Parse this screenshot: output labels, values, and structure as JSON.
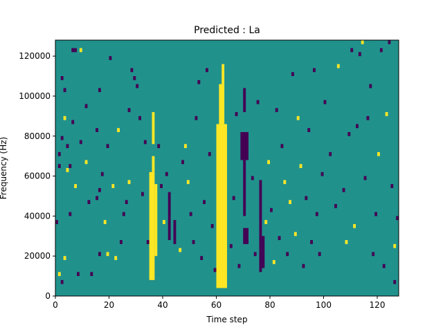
{
  "chart_data": {
    "type": "heatmap",
    "title": "Predicted : La",
    "xlabel": "Time step",
    "ylabel": "Frequency (Hz)",
    "xlim": [
      0,
      128
    ],
    "ylim": [
      0,
      128000
    ],
    "xticks": [
      0,
      20,
      40,
      60,
      80,
      100,
      120
    ],
    "yticks": [
      0,
      20000,
      40000,
      60000,
      80000,
      100000,
      120000
    ],
    "grid": false,
    "legend": "none",
    "colormap": {
      "low": "#440154",
      "mid": "#21918c",
      "high": "#fde725"
    },
    "cell_width_timesteps": 1,
    "cell_height_hz": 2000,
    "bands": [
      {
        "level": "high",
        "t0": 60,
        "t1": 64,
        "f0": 4000,
        "f1": 86000
      },
      {
        "level": "high",
        "t0": 61,
        "t1": 63,
        "f0": 86000,
        "f1": 106000
      },
      {
        "level": "high",
        "t0": 62,
        "t1": 63,
        "f0": 106000,
        "f1": 116000
      },
      {
        "level": "high",
        "t0": 35,
        "t1": 37,
        "f0": 8000,
        "f1": 62000
      },
      {
        "level": "high",
        "t0": 36,
        "t1": 37,
        "f0": 62000,
        "f1": 70000
      },
      {
        "level": "high",
        "t0": 36,
        "t1": 37,
        "f0": 76000,
        "f1": 92000
      },
      {
        "level": "high",
        "t0": 37,
        "t1": 38,
        "f0": 20000,
        "f1": 56000
      },
      {
        "level": "low",
        "t0": 69,
        "t1": 72,
        "f0": 68000,
        "f1": 82000
      },
      {
        "level": "low",
        "t0": 70,
        "t1": 71,
        "f0": 40000,
        "f1": 68000
      },
      {
        "level": "low",
        "t0": 70,
        "t1": 72,
        "f0": 26000,
        "f1": 34000
      },
      {
        "level": "low",
        "t0": 70,
        "t1": 71,
        "f0": 92000,
        "f1": 104000
      },
      {
        "level": "low",
        "t0": 76,
        "t1": 77,
        "f0": 12000,
        "f1": 58000
      },
      {
        "level": "low",
        "t0": 77,
        "t1": 78,
        "f0": 14000,
        "f1": 30000
      },
      {
        "level": "low",
        "t0": 42,
        "t1": 43,
        "f0": 28000,
        "f1": 52000
      },
      {
        "level": "low",
        "t0": 44,
        "t1": 45,
        "f0": 26000,
        "f1": 38000
      }
    ],
    "cells": [
      {
        "t": 1,
        "f": 10000,
        "level": "high"
      },
      {
        "t": 2,
        "f": 6000,
        "level": "low"
      },
      {
        "t": 3,
        "f": 18000,
        "level": "high"
      },
      {
        "t": 0,
        "f": 36000,
        "level": "low"
      },
      {
        "t": 1,
        "f": 64000,
        "level": "low"
      },
      {
        "t": 1,
        "f": 70000,
        "level": "low"
      },
      {
        "t": 2,
        "f": 78000,
        "level": "low"
      },
      {
        "t": 3,
        "f": 88000,
        "level": "high"
      },
      {
        "t": 2,
        "f": 108000,
        "level": "low"
      },
      {
        "t": 3,
        "f": 102000,
        "level": "low"
      },
      {
        "t": 6,
        "f": 122000,
        "level": "low"
      },
      {
        "t": 7,
        "f": 122000,
        "level": "low"
      },
      {
        "t": 9,
        "f": 122000,
        "level": "high"
      },
      {
        "t": 4,
        "f": 74000,
        "level": "low"
      },
      {
        "t": 4,
        "f": 62000,
        "level": "high"
      },
      {
        "t": 5,
        "f": 40000,
        "level": "low"
      },
      {
        "t": 5,
        "f": 64000,
        "level": "low"
      },
      {
        "t": 6,
        "f": 86000,
        "level": "low"
      },
      {
        "t": 7,
        "f": 54000,
        "level": "high"
      },
      {
        "t": 8,
        "f": 10000,
        "level": "low"
      },
      {
        "t": 9,
        "f": 76000,
        "level": "low"
      },
      {
        "t": 11,
        "f": 66000,
        "level": "high"
      },
      {
        "t": 11,
        "f": 94000,
        "level": "low"
      },
      {
        "t": 12,
        "f": 46000,
        "level": "low"
      },
      {
        "t": 13,
        "f": 10000,
        "level": "low"
      },
      {
        "t": 15,
        "f": 48000,
        "level": "low"
      },
      {
        "t": 15,
        "f": 82000,
        "level": "low"
      },
      {
        "t": 16,
        "f": 102000,
        "level": "low"
      },
      {
        "t": 16,
        "f": 20000,
        "level": "low"
      },
      {
        "t": 16,
        "f": 52000,
        "level": "low"
      },
      {
        "t": 17,
        "f": 60000,
        "level": "low"
      },
      {
        "t": 18,
        "f": 36000,
        "level": "high"
      },
      {
        "t": 19,
        "f": 20000,
        "level": "high"
      },
      {
        "t": 19,
        "f": 74000,
        "level": "low"
      },
      {
        "t": 20,
        "f": 118000,
        "level": "low"
      },
      {
        "t": 21,
        "f": 54000,
        "level": "high"
      },
      {
        "t": 22,
        "f": 18000,
        "level": "high"
      },
      {
        "t": 23,
        "f": 82000,
        "level": "high"
      },
      {
        "t": 24,
        "f": 26000,
        "level": "low"
      },
      {
        "t": 25,
        "f": 40000,
        "level": "low"
      },
      {
        "t": 26,
        "f": 46000,
        "level": "low"
      },
      {
        "t": 27,
        "f": 56000,
        "level": "high"
      },
      {
        "t": 27,
        "f": 92000,
        "level": "low"
      },
      {
        "t": 28,
        "f": 112000,
        "level": "low"
      },
      {
        "t": 29,
        "f": 108000,
        "level": "low"
      },
      {
        "t": 30,
        "f": 104000,
        "level": "low"
      },
      {
        "t": 31,
        "f": 88000,
        "level": "low"
      },
      {
        "t": 32,
        "f": 50000,
        "level": "low"
      },
      {
        "t": 33,
        "f": 76000,
        "level": "low"
      },
      {
        "t": 34,
        "f": 26000,
        "level": "low"
      },
      {
        "t": 38,
        "f": 74000,
        "level": "low"
      },
      {
        "t": 39,
        "f": 54000,
        "level": "low"
      },
      {
        "t": 40,
        "f": 36000,
        "level": "high"
      },
      {
        "t": 41,
        "f": 60000,
        "level": "low"
      },
      {
        "t": 46,
        "f": 22000,
        "level": "high"
      },
      {
        "t": 47,
        "f": 66000,
        "level": "low"
      },
      {
        "t": 48,
        "f": 74000,
        "level": "high"
      },
      {
        "t": 49,
        "f": 56000,
        "level": "high"
      },
      {
        "t": 50,
        "f": 40000,
        "level": "low"
      },
      {
        "t": 51,
        "f": 26000,
        "level": "low"
      },
      {
        "t": 52,
        "f": 88000,
        "level": "low"
      },
      {
        "t": 53,
        "f": 106000,
        "level": "low"
      },
      {
        "t": 54,
        "f": 18000,
        "level": "low"
      },
      {
        "t": 55,
        "f": 46000,
        "level": "low"
      },
      {
        "t": 56,
        "f": 112000,
        "level": "low"
      },
      {
        "t": 57,
        "f": 70000,
        "level": "low"
      },
      {
        "t": 58,
        "f": 34000,
        "level": "low"
      },
      {
        "t": 59,
        "f": 12000,
        "level": "low"
      },
      {
        "t": 65,
        "f": 24000,
        "level": "low"
      },
      {
        "t": 66,
        "f": 48000,
        "level": "low"
      },
      {
        "t": 67,
        "f": 90000,
        "level": "low"
      },
      {
        "t": 68,
        "f": 14000,
        "level": "low"
      },
      {
        "t": 73,
        "f": 58000,
        "level": "low"
      },
      {
        "t": 74,
        "f": 20000,
        "level": "low"
      },
      {
        "t": 75,
        "f": 96000,
        "level": "low"
      },
      {
        "t": 78,
        "f": 36000,
        "level": "high"
      },
      {
        "t": 79,
        "f": 66000,
        "level": "high"
      },
      {
        "t": 80,
        "f": 42000,
        "level": "low"
      },
      {
        "t": 81,
        "f": 16000,
        "level": "high"
      },
      {
        "t": 82,
        "f": 92000,
        "level": "low"
      },
      {
        "t": 83,
        "f": 28000,
        "level": "low"
      },
      {
        "t": 84,
        "f": 74000,
        "level": "low"
      },
      {
        "t": 85,
        "f": 56000,
        "level": "high"
      },
      {
        "t": 86,
        "f": 20000,
        "level": "low"
      },
      {
        "t": 87,
        "f": 46000,
        "level": "high"
      },
      {
        "t": 88,
        "f": 110000,
        "level": "low"
      },
      {
        "t": 89,
        "f": 30000,
        "level": "high"
      },
      {
        "t": 90,
        "f": 88000,
        "level": "high"
      },
      {
        "t": 91,
        "f": 64000,
        "level": "high"
      },
      {
        "t": 92,
        "f": 14000,
        "level": "low"
      },
      {
        "t": 93,
        "f": 48000,
        "level": "low"
      },
      {
        "t": 94,
        "f": 82000,
        "level": "low"
      },
      {
        "t": 95,
        "f": 26000,
        "level": "low"
      },
      {
        "t": 96,
        "f": 112000,
        "level": "low"
      },
      {
        "t": 97,
        "f": 40000,
        "level": "low"
      },
      {
        "t": 98,
        "f": 20000,
        "level": "low"
      },
      {
        "t": 99,
        "f": 60000,
        "level": "low"
      },
      {
        "t": 100,
        "f": 96000,
        "level": "low"
      },
      {
        "t": 102,
        "f": 70000,
        "level": "low"
      },
      {
        "t": 104,
        "f": 44000,
        "level": "low"
      },
      {
        "t": 105,
        "f": 114000,
        "level": "high"
      },
      {
        "t": 107,
        "f": 52000,
        "level": "low"
      },
      {
        "t": 109,
        "f": 80000,
        "level": "low"
      },
      {
        "t": 110,
        "f": 122000,
        "level": "low"
      },
      {
        "t": 111,
        "f": 34000,
        "level": "high"
      },
      {
        "t": 112,
        "f": 84000,
        "level": "low"
      },
      {
        "t": 113,
        "f": 120000,
        "level": "low"
      },
      {
        "t": 114,
        "f": 126000,
        "level": "high"
      },
      {
        "t": 115,
        "f": 58000,
        "level": "low"
      },
      {
        "t": 116,
        "f": 88000,
        "level": "low"
      },
      {
        "t": 117,
        "f": 104000,
        "level": "low"
      },
      {
        "t": 118,
        "f": 20000,
        "level": "low"
      },
      {
        "t": 119,
        "f": 40000,
        "level": "low"
      },
      {
        "t": 120,
        "f": 70000,
        "level": "high"
      },
      {
        "t": 121,
        "f": 122000,
        "level": "low"
      },
      {
        "t": 122,
        "f": 14000,
        "level": "low"
      },
      {
        "t": 123,
        "f": 90000,
        "level": "high"
      },
      {
        "t": 124,
        "f": 126000,
        "level": "low"
      },
      {
        "t": 125,
        "f": 54000,
        "level": "low"
      },
      {
        "t": 126,
        "f": 24000,
        "level": "high"
      },
      {
        "t": 127,
        "f": 38000,
        "level": "low"
      },
      {
        "t": 126,
        "f": 6000,
        "level": "low"
      },
      {
        "t": 108,
        "f": 26000,
        "level": "high"
      }
    ]
  }
}
